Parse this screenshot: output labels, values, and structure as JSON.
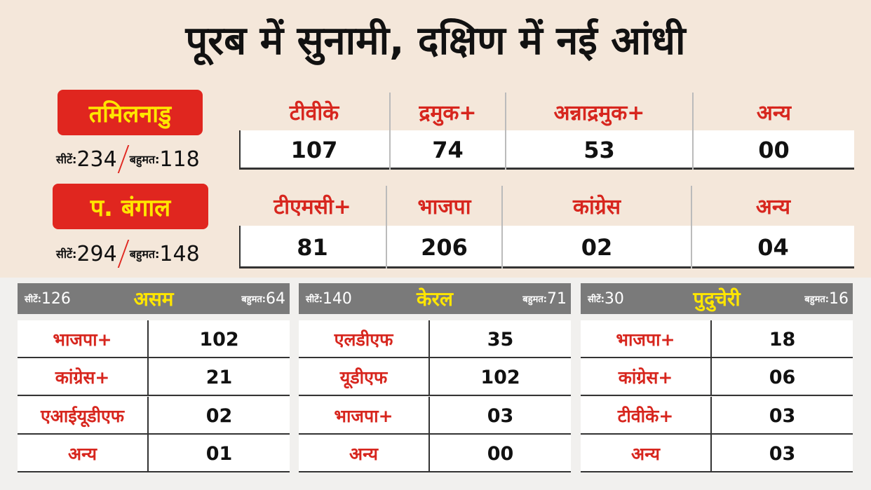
{
  "title": "पूरब में सुनामी, दक्षिण में नई आंधी",
  "main_states": [
    {
      "name": "तमिलनाडु",
      "seats_label": "सीटें:",
      "seats": "234",
      "majority_label": "बहुमत:",
      "majority": "118",
      "parties": [
        "टीवीके",
        "द्रमुक+",
        "अन्नाद्रमुक+",
        "अन्य"
      ],
      "results": [
        "107",
        "74",
        "53",
        "00"
      ]
    },
    {
      "name": "प. बंगाल",
      "seats_label": "सीटें:",
      "seats": "294",
      "majority_label": "बहुमत:",
      "majority": "148",
      "parties": [
        "टीएमसी+",
        "भाजपा",
        "कांग्रेस",
        "अन्य"
      ],
      "results": [
        "81",
        "206",
        "02",
        "04"
      ]
    }
  ],
  "small_states": [
    {
      "name": "असम",
      "seats_label": "सीटें:",
      "seats": "126",
      "majority_label": "बहुमत:",
      "majority": "64",
      "rows": [
        [
          "भाजपा+",
          "102"
        ],
        [
          "कांग्रेस+",
          "21"
        ],
        [
          "एआईयूडीएफ",
          "02"
        ],
        [
          "अन्य",
          "01"
        ]
      ]
    },
    {
      "name": "केरल",
      "seats_label": "सीटें:",
      "seats": "140",
      "majority_label": "बहुमत:",
      "majority": "71",
      "rows": [
        [
          "एलडीएफ",
          "35"
        ],
        [
          "यूडीएफ",
          "102"
        ],
        [
          "भाजपा+",
          "03"
        ],
        [
          "अन्य",
          "00"
        ]
      ]
    },
    {
      "name": "पुदुचेरी",
      "seats_label": "सीटें:",
      "seats": "30",
      "majority_label": "बहुमत:",
      "majority": "16",
      "rows": [
        [
          "भाजपा+",
          "18"
        ],
        [
          "कांग्रेस+",
          "06"
        ],
        [
          "टीवीके+",
          "03"
        ],
        [
          "अन्य",
          "03"
        ]
      ]
    }
  ]
}
